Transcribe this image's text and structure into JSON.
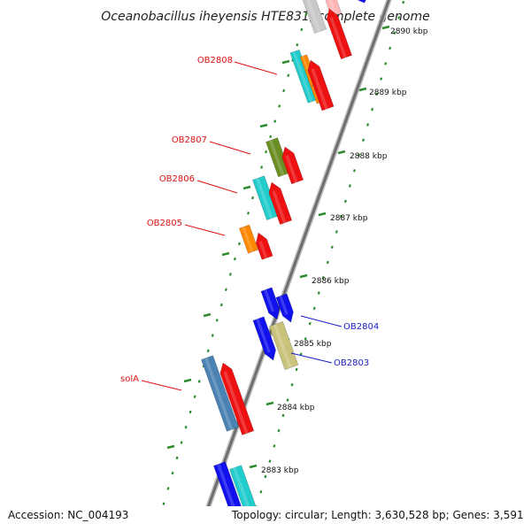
{
  "title": "Oceanobacillus iheyensis HTE831, complete genome",
  "accession": "Accession: NC_004193",
  "topology": "Topology: circular; Length: 3,630,528 bp; Genes: 3,591",
  "colors": {
    "red": "#ee1111",
    "blue": "#1111ee",
    "cyan": "#22cccc",
    "orange": "#ff8800",
    "olive": "#6b8e23",
    "khaki": "#c8c27a",
    "steel": "#4a82b4",
    "gray": "#c8c8c8",
    "pink": "#ffb6b6",
    "tick_green": "#2e8b2e",
    "label_red": "#dd1111",
    "label_blue": "#1a1acc"
  },
  "kbp_ticks": [
    {
      "label": "2883 kbp"
    },
    {
      "label": "2884 kbp"
    },
    {
      "label": "2885 kbp"
    },
    {
      "label": "2886 kbp"
    },
    {
      "label": "2887 kbp"
    },
    {
      "label": "2888 kbp"
    },
    {
      "label": "2889 kbp"
    },
    {
      "label": "2890 kbp"
    }
  ],
  "gene_labels": [
    {
      "text": "OB2808",
      "strand": "forward",
      "color": "red"
    },
    {
      "text": "OB2807",
      "strand": "forward",
      "color": "red"
    },
    {
      "text": "OB2806",
      "strand": "forward",
      "color": "red"
    },
    {
      "text": "OB2805",
      "strand": "forward",
      "color": "red"
    },
    {
      "text": "solA",
      "strand": "forward",
      "color": "red"
    },
    {
      "text": "OB2804",
      "strand": "reverse",
      "color": "blue"
    },
    {
      "text": "OB2803",
      "strand": "reverse",
      "color": "blue"
    }
  ]
}
